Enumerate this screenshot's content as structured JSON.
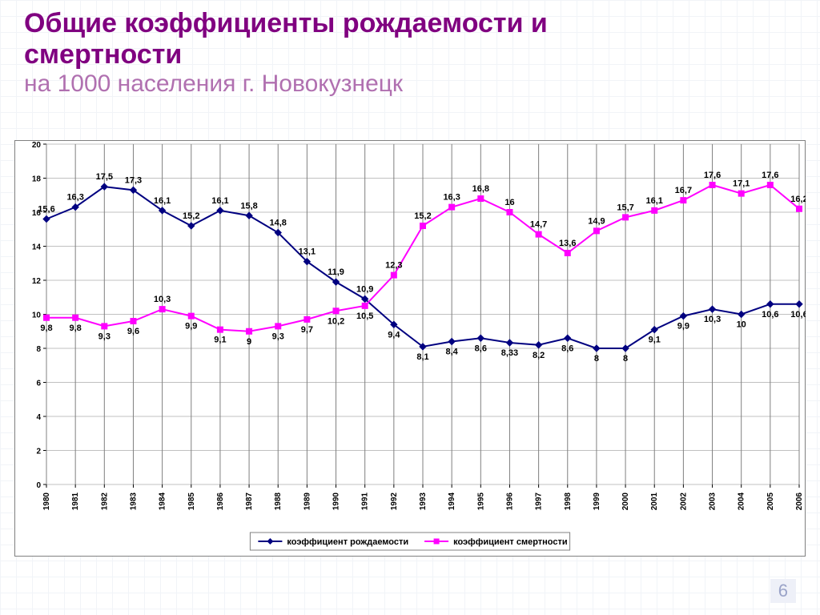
{
  "slide": {
    "title_main_line1": "Общие коэффициенты рождаемости и",
    "title_main_line2": "смертности",
    "title_sub": "на 1000 населения г. Новокузнецк",
    "page_number": "6"
  },
  "chart": {
    "type": "line",
    "background_color": "#ffffff",
    "plot_border_color": "#808080",
    "grid_color": "#c0c0c0",
    "axis_font_size": 10,
    "axis_font_color": "#000000",
    "label_font_size": 11,
    "label_font_color": "#000000",
    "xlim": [
      1980,
      2006
    ],
    "ylim": [
      0,
      20
    ],
    "ytick_step": 2,
    "yticks": [
      0,
      2,
      4,
      6,
      8,
      10,
      12,
      14,
      16,
      18,
      20
    ],
    "x_categories": [
      "1980",
      "1981",
      "1982",
      "1983",
      "1984",
      "1985",
      "1986",
      "1987",
      "1988",
      "1989",
      "1990",
      "1991",
      "1992",
      "1993",
      "1994",
      "1995",
      "1996",
      "1997",
      "1998",
      "1999",
      "2000",
      "2001",
      "2002",
      "2003",
      "2004",
      "2005",
      "2006"
    ],
    "series": [
      {
        "name": "коэффициент рождаемости",
        "color": "#000080",
        "marker": "diamond",
        "marker_size": 8,
        "line_width": 2,
        "values": [
          15.6,
          16.3,
          17.5,
          17.3,
          16.1,
          15.2,
          16.1,
          15.8,
          14.8,
          13.1,
          11.9,
          10.9,
          9.4,
          8.1,
          8.4,
          8.6,
          8.33,
          8.2,
          8.6,
          8.0,
          8.0,
          9.1,
          9.9,
          10.3,
          10.0,
          10.6,
          10.6
        ],
        "labels": [
          "15,6",
          "16,3",
          "17,5",
          "17,3",
          "16,1",
          "15,2",
          "16,1",
          "15,8",
          "14,8",
          "13,1",
          "11,9",
          "10,9",
          "9,4",
          "8,1",
          "8,4",
          "8,6",
          "8,33",
          "8,2",
          "8,6",
          "8",
          "8",
          "9,1",
          "9,9",
          "10,3",
          "10",
          "10,6",
          "10,6"
        ],
        "label_pos": [
          "above",
          "above",
          "above",
          "above",
          "above",
          "above",
          "above",
          "above",
          "above",
          "above",
          "above",
          "above",
          "below",
          "below",
          "below",
          "below",
          "below",
          "below",
          "below",
          "below",
          "below",
          "below",
          "below",
          "below",
          "below",
          "below",
          "below"
        ]
      },
      {
        "name": "коэффициент смертности",
        "color": "#ff00ff",
        "marker": "square",
        "marker_size": 7,
        "line_width": 2,
        "values": [
          9.8,
          9.8,
          9.3,
          9.6,
          10.3,
          9.9,
          9.1,
          9.0,
          9.3,
          9.7,
          10.2,
          10.5,
          12.3,
          15.2,
          16.3,
          16.8,
          16.0,
          14.7,
          13.6,
          14.9,
          15.7,
          16.1,
          16.7,
          17.6,
          17.1,
          17.6,
          16.2
        ],
        "labels": [
          "9,8",
          "9,8",
          "9,3",
          "9,6",
          "10,3",
          "9,9",
          "9,1",
          "9",
          "9,3",
          "9,7",
          "10,2",
          "10,5",
          "12,3",
          "15,2",
          "16,3",
          "16,8",
          "16",
          "14,7",
          "13,6",
          "14,9",
          "15,7",
          "16,1",
          "16,7",
          "17,6",
          "17,1",
          "17,6",
          "16,2"
        ],
        "label_pos": [
          "below",
          "below",
          "below",
          "below",
          "above",
          "below",
          "below",
          "below",
          "below",
          "below",
          "below",
          "below",
          "above",
          "above",
          "above",
          "above",
          "above",
          "above",
          "above",
          "above",
          "above",
          "above",
          "above",
          "above",
          "above",
          "above",
          "above"
        ]
      }
    ],
    "legend": {
      "position": "bottom",
      "border_color": "#808080",
      "font_size": 11,
      "background": "#ffffff"
    }
  }
}
